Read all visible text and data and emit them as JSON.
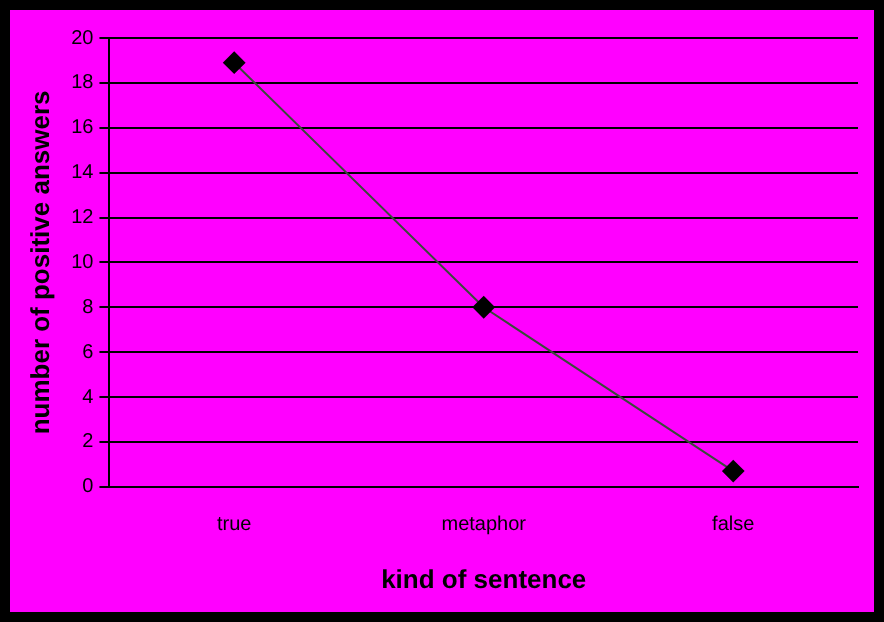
{
  "chart_data": {
    "type": "line",
    "xlabel": "kind of sentence",
    "ylabel": "number of positive answers",
    "categories": [
      "true",
      "metaphor",
      "false"
    ],
    "series": [
      {
        "color": "#000000",
        "values": [
          18.9,
          8,
          0.7
        ]
      }
    ],
    "ylim": [
      0,
      20
    ],
    "yticks": [
      0,
      2,
      4,
      6,
      8,
      10,
      12,
      14,
      16,
      18,
      20
    ],
    "grid": "y",
    "legend": false,
    "marker": "diamond",
    "line_style": "solid"
  }
}
